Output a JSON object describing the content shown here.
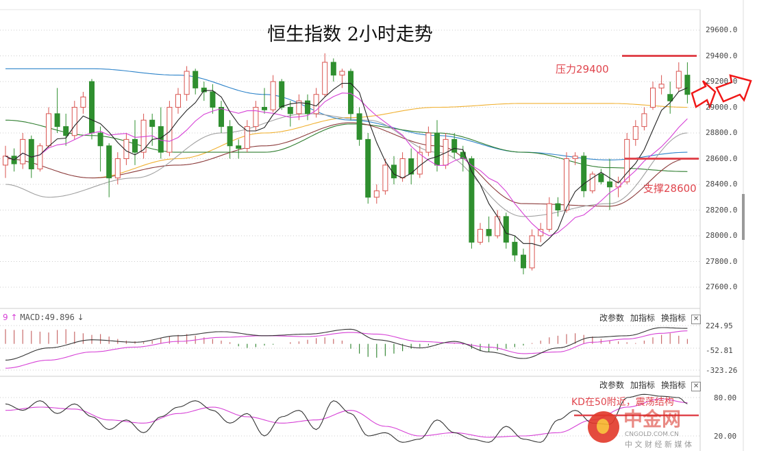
{
  "title": "恒生指数 2小时走势",
  "annotations": {
    "resistance": "压力29400",
    "support": "支撑28600",
    "kd_note": "KD在50附近，震荡结构"
  },
  "macd_header": {
    "prefix": "9",
    "up_arrow": "↑",
    "label": "MACD:49.896",
    "down_arrow": "↓"
  },
  "panel_buttons": {
    "edit": "改参数",
    "add": "加指标",
    "switch": "换指标",
    "close": "✕"
  },
  "watermark": {
    "logo": "中金网",
    "domain": "CNGOLD.COM.CN",
    "slogan": "中 文 财 经 新 媒 体"
  },
  "colors": {
    "up": "#d9534f",
    "down": "#2f8f2f",
    "ma5": "#222222",
    "ma10": "#d640d6",
    "ma20": "#a0a0a0",
    "ma30": "#8b3a3a",
    "ma60": "#2e7d2e",
    "ma120": "#2b82c9",
    "ma250": "#f0b030",
    "annotation": "#e0454d"
  },
  "chart_data": [
    {
      "type": "candlestick",
      "title": "恒生指数 2小时走势",
      "ylim": [
        27600,
        29600
      ],
      "yticks": [
        "29600.0",
        "29400.0",
        "29200.0",
        "29000.0",
        "28800.0",
        "28600.0",
        "28400.0",
        "28200.0",
        "28000.0",
        "27800.0",
        "27600.0"
      ],
      "grid": true,
      "resistance": 29400,
      "support": 28600,
      "ohlc": [
        [
          28550,
          28700,
          28450,
          28620
        ],
        [
          28620,
          28680,
          28500,
          28560
        ],
        [
          28560,
          28800,
          28520,
          28750
        ],
        [
          28750,
          28780,
          28450,
          28520
        ],
        [
          28520,
          28720,
          28500,
          28700
        ],
        [
          28700,
          29000,
          28680,
          28950
        ],
        [
          28950,
          29150,
          28800,
          28850
        ],
        [
          28850,
          28950,
          28700,
          28780
        ],
        [
          28780,
          29050,
          28750,
          29000
        ],
        [
          29000,
          29120,
          28950,
          29080
        ],
        [
          29200,
          29220,
          28750,
          28800
        ],
        [
          28800,
          28850,
          28500,
          28700
        ],
        [
          28700,
          28720,
          28300,
          28450
        ],
        [
          28450,
          28650,
          28400,
          28600
        ],
        [
          28600,
          28800,
          28550,
          28750
        ],
        [
          28750,
          28900,
          28550,
          28650
        ],
        [
          28650,
          28950,
          28600,
          28900
        ],
        [
          28900,
          28950,
          28700,
          28850
        ],
        [
          28850,
          29000,
          28600,
          28650
        ],
        [
          28650,
          29050,
          28620,
          29000
        ],
        [
          29000,
          29150,
          28950,
          29100
        ],
        [
          29100,
          29320,
          29050,
          29280
        ],
        [
          29280,
          29300,
          29100,
          29150
        ],
        [
          29150,
          29200,
          29050,
          29120
        ],
        [
          29120,
          29180,
          28950,
          29000
        ],
        [
          29000,
          29050,
          28800,
          28850
        ],
        [
          28850,
          28900,
          28600,
          28700
        ],
        [
          28700,
          28750,
          28600,
          28680
        ],
        [
          28680,
          28900,
          28650,
          28850
        ],
        [
          28850,
          29050,
          28820,
          29000
        ],
        [
          29000,
          29150,
          28950,
          28980
        ],
        [
          28980,
          29250,
          28960,
          29200
        ],
        [
          29200,
          29220,
          28980,
          29000
        ],
        [
          29000,
          29050,
          28850,
          28950
        ],
        [
          28950,
          29100,
          28900,
          29050
        ],
        [
          29050,
          29100,
          28900,
          28950
        ],
        [
          28950,
          29150,
          28920,
          29100
        ],
        [
          29100,
          29420,
          29080,
          29350
        ],
        [
          29350,
          29380,
          29200,
          29250
        ],
        [
          29250,
          29300,
          29150,
          29280
        ],
        [
          29280,
          29300,
          28900,
          28950
        ],
        [
          28950,
          29000,
          28700,
          28750
        ],
        [
          28750,
          28800,
          28250,
          28300
        ],
        [
          28300,
          28400,
          28250,
          28350
        ],
        [
          28350,
          28600,
          28320,
          28550
        ],
        [
          28550,
          28620,
          28400,
          28450
        ],
        [
          28450,
          28650,
          28420,
          28600
        ],
        [
          28600,
          28680,
          28400,
          28480
        ],
        [
          28480,
          28700,
          28450,
          28650
        ],
        [
          28650,
          28850,
          28620,
          28800
        ],
        [
          28800,
          28900,
          28500,
          28550
        ],
        [
          28550,
          28800,
          28520,
          28750
        ],
        [
          28750,
          28800,
          28600,
          28650
        ],
        [
          28650,
          28700,
          28500,
          28600
        ],
        [
          28600,
          28620,
          27900,
          27950
        ],
        [
          27950,
          28100,
          27930,
          28050
        ],
        [
          28050,
          28150,
          27950,
          28000
        ],
        [
          28000,
          28200,
          27980,
          28150
        ],
        [
          28150,
          28180,
          27900,
          27950
        ],
        [
          27950,
          28000,
          27800,
          27850
        ],
        [
          27850,
          27900,
          27700,
          27750
        ],
        [
          27750,
          28050,
          27730,
          28000
        ],
        [
          28000,
          28100,
          27950,
          28050
        ],
        [
          28050,
          28300,
          28030,
          28250
        ],
        [
          28250,
          28300,
          28150,
          28200
        ],
        [
          28200,
          28650,
          28180,
          28600
        ],
        [
          28600,
          28650,
          28550,
          28620
        ],
        [
          28620,
          28650,
          28300,
          28350
        ],
        [
          28350,
          28500,
          28330,
          28480
        ],
        [
          28480,
          28520,
          28400,
          28420
        ],
        [
          28420,
          28600,
          28200,
          28380
        ],
        [
          28380,
          28460,
          28300,
          28420
        ],
        [
          28420,
          28800,
          28400,
          28750
        ],
        [
          28750,
          28900,
          28700,
          28850
        ],
        [
          28850,
          29000,
          28820,
          28950
        ],
        [
          29000,
          29200,
          28980,
          29150
        ],
        [
          29150,
          29250,
          29100,
          29180
        ],
        [
          29100,
          29200,
          28950,
          29050
        ],
        [
          29150,
          29350,
          29120,
          29280
        ],
        [
          29250,
          29350,
          29030,
          29100
        ]
      ],
      "moving_averages": {
        "ma20": [
          [
            0,
            28400
          ],
          [
            5,
            28300
          ],
          [
            15,
            28450
          ],
          [
            25,
            28800
          ],
          [
            35,
            28950
          ],
          [
            42,
            28900
          ],
          [
            50,
            28650
          ],
          [
            60,
            28150
          ],
          [
            70,
            28250
          ],
          [
            79,
            28800
          ]
        ],
        "ma30": [
          [
            0,
            28600
          ],
          [
            10,
            28450
          ],
          [
            20,
            28550
          ],
          [
            30,
            28700
          ],
          [
            40,
            28880
          ],
          [
            50,
            28700
          ],
          [
            60,
            28250
          ],
          [
            70,
            28230
          ],
          [
            79,
            28600
          ]
        ],
        "ma60": [
          [
            0,
            28900
          ],
          [
            10,
            28780
          ],
          [
            20,
            28650
          ],
          [
            30,
            28650
          ],
          [
            40,
            28870
          ],
          [
            50,
            28800
          ],
          [
            60,
            28650
          ],
          [
            70,
            28530
          ],
          [
            79,
            28500
          ]
        ],
        "ma120": [
          [
            0,
            29300
          ],
          [
            10,
            29300
          ],
          [
            20,
            29250
          ],
          [
            30,
            29100
          ],
          [
            40,
            28900
          ],
          [
            50,
            28780
          ],
          [
            60,
            28650
          ],
          [
            70,
            28590
          ],
          [
            79,
            28650
          ]
        ],
        "ma250": [
          [
            10,
            28450
          ],
          [
            20,
            28600
          ],
          [
            30,
            28800
          ],
          [
            40,
            28920
          ],
          [
            50,
            29000
          ],
          [
            60,
            29030
          ],
          [
            70,
            29030
          ],
          [
            79,
            29000
          ]
        ]
      }
    },
    {
      "type": "macd",
      "ylim": [
        -323.26,
        224.95
      ],
      "yticks": [
        "224.95",
        "-52.81",
        "-323.26"
      ],
      "histogram": [
        180,
        170,
        175,
        160,
        150,
        140,
        170,
        180,
        150,
        130,
        110,
        120,
        90,
        60,
        40,
        30,
        20,
        40,
        70,
        90,
        110,
        120,
        100,
        80,
        60,
        40,
        20,
        -30,
        -50,
        -40,
        -20,
        -10,
        0,
        20,
        30,
        50,
        70,
        80,
        60,
        40,
        -60,
        -120,
        -160,
        -170,
        -150,
        -120,
        -90,
        -60,
        -40,
        -20,
        -10,
        0,
        10,
        -10,
        -60,
        -90,
        -100,
        -80,
        -60,
        -40,
        -20,
        10,
        40,
        80,
        100,
        120,
        130,
        110,
        90,
        60,
        40,
        30,
        20,
        10,
        40,
        80,
        110,
        130,
        100,
        60
      ],
      "dif": [
        [
          0,
          -200
        ],
        [
          5,
          -50
        ],
        [
          10,
          50
        ],
        [
          15,
          20
        ],
        [
          20,
          100
        ],
        [
          25,
          150
        ],
        [
          30,
          100
        ],
        [
          35,
          120
        ],
        [
          40,
          180
        ],
        [
          43,
          50
        ],
        [
          48,
          -50
        ],
        [
          52,
          30
        ],
        [
          56,
          -100
        ],
        [
          60,
          -180
        ],
        [
          64,
          -50
        ],
        [
          68,
          80
        ],
        [
          72,
          100
        ],
        [
          76,
          200
        ],
        [
          79,
          190
        ]
      ],
      "dea": [
        [
          0,
          -300
        ],
        [
          5,
          -200
        ],
        [
          10,
          -100
        ],
        [
          15,
          -40
        ],
        [
          20,
          30
        ],
        [
          25,
          80
        ],
        [
          30,
          100
        ],
        [
          35,
          90
        ],
        [
          40,
          140
        ],
        [
          43,
          120
        ],
        [
          48,
          30
        ],
        [
          52,
          10
        ],
        [
          56,
          -40
        ],
        [
          60,
          -120
        ],
        [
          64,
          -100
        ],
        [
          68,
          20
        ],
        [
          72,
          60
        ],
        [
          76,
          130
        ],
        [
          79,
          160
        ]
      ]
    },
    {
      "type": "kd",
      "yticks": [
        "80.00",
        "20.00"
      ],
      "k": [
        [
          0,
          70
        ],
        [
          2,
          60
        ],
        [
          4,
          75
        ],
        [
          6,
          55
        ],
        [
          8,
          70
        ],
        [
          10,
          50
        ],
        [
          12,
          30
        ],
        [
          14,
          45
        ],
        [
          16,
          25
        ],
        [
          18,
          50
        ],
        [
          20,
          65
        ],
        [
          22,
          75
        ],
        [
          24,
          60
        ],
        [
          26,
          40
        ],
        [
          28,
          55
        ],
        [
          30,
          20
        ],
        [
          32,
          50
        ],
        [
          34,
          60
        ],
        [
          36,
          30
        ],
        [
          38,
          75
        ],
        [
          40,
          55
        ],
        [
          42,
          20
        ],
        [
          44,
          25
        ],
        [
          46,
          10
        ],
        [
          48,
          15
        ],
        [
          50,
          45
        ],
        [
          52,
          25
        ],
        [
          54,
          15
        ],
        [
          56,
          10
        ],
        [
          58,
          35
        ],
        [
          60,
          15
        ],
        [
          62,
          10
        ],
        [
          64,
          45
        ],
        [
          66,
          60
        ],
        [
          68,
          40
        ],
        [
          70,
          38
        ],
        [
          72,
          80
        ],
        [
          74,
          85
        ],
        [
          76,
          82
        ],
        [
          78,
          80
        ],
        [
          79,
          70
        ]
      ],
      "d": [
        [
          0,
          60
        ],
        [
          4,
          65
        ],
        [
          8,
          62
        ],
        [
          12,
          45
        ],
        [
          16,
          40
        ],
        [
          20,
          55
        ],
        [
          24,
          65
        ],
        [
          28,
          50
        ],
        [
          32,
          40
        ],
        [
          36,
          45
        ],
        [
          40,
          60
        ],
        [
          44,
          35
        ],
        [
          48,
          20
        ],
        [
          52,
          25
        ],
        [
          56,
          18
        ],
        [
          60,
          20
        ],
        [
          64,
          25
        ],
        [
          68,
          45
        ],
        [
          72,
          65
        ],
        [
          76,
          78
        ],
        [
          79,
          72
        ]
      ],
      "reference_level": 50
    }
  ]
}
